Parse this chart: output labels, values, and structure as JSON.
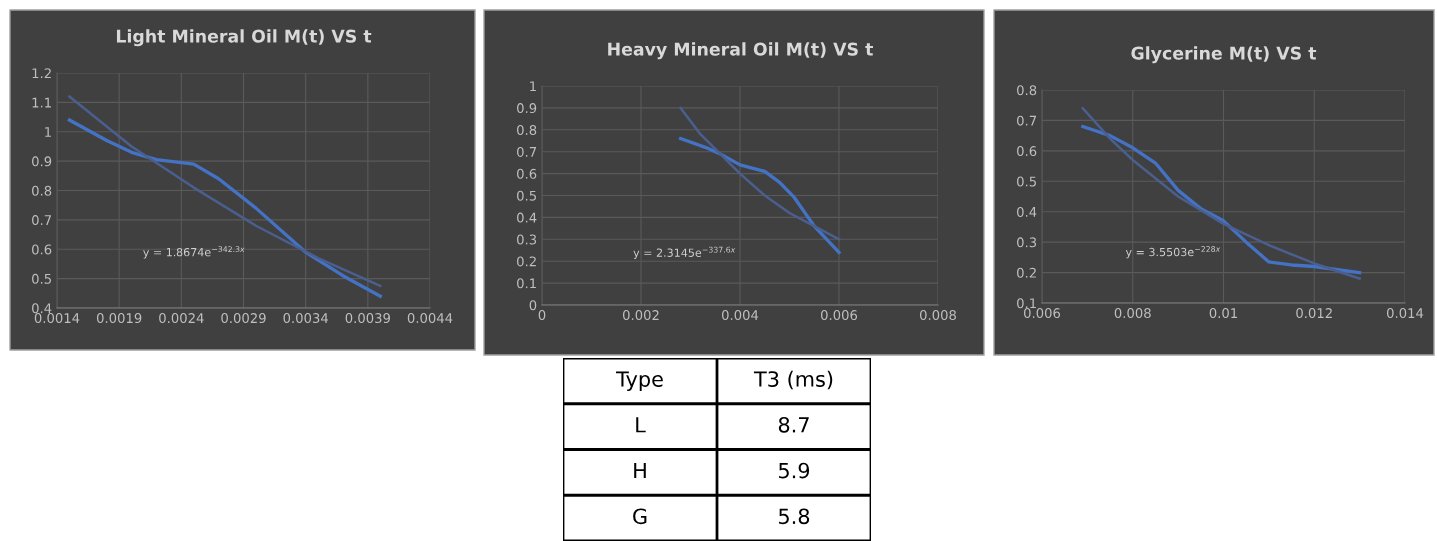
{
  "chart_data": [
    {
      "type": "line",
      "title": "Light Mineral Oil M(t) VS t",
      "xlim": [
        0.0014,
        0.0044
      ],
      "xticks": [
        0.0014,
        0.0019,
        0.0024,
        0.0029,
        0.0034,
        0.0039,
        0.0044
      ],
      "ylim": [
        0.4,
        1.2
      ],
      "yticks": [
        0.4,
        0.5,
        0.6,
        0.7,
        0.8,
        0.9,
        1,
        1.1,
        1.2
      ],
      "grid": true,
      "marker": "none",
      "annotations": [
        "y = 1.8674e$^{−342.3x}$"
      ],
      "series": [
        {
          "color": "#4472c4",
          "x": [
            0.0015,
            0.0018,
            0.002,
            0.0022,
            0.0025,
            0.0027,
            0.003,
            0.0034,
            0.0037,
            0.004
          ],
          "values": [
            1.04,
            0.97,
            0.93,
            0.905,
            0.89,
            0.84,
            0.74,
            0.59,
            0.51,
            0.44
          ]
        },
        {
          "color": "#4a5f8f",
          "x": [
            0.0015,
            0.002,
            0.0025,
            0.003,
            0.0035,
            0.004
          ],
          "values": [
            1.12,
            0.95,
            0.81,
            0.68,
            0.57,
            0.475
          ]
        }
      ]
    },
    {
      "type": "line",
      "title": "Heavy Mineral Oil M(t) VS t",
      "xlim": [
        0,
        0.008
      ],
      "xticks": [
        0,
        0.002,
        0.004,
        0.006,
        0.008
      ],
      "ylim": [
        0,
        1
      ],
      "yticks": [
        0,
        0.1,
        0.2,
        0.3,
        0.4,
        0.5,
        0.6,
        0.7,
        0.8,
        0.9,
        1
      ],
      "grid": true,
      "marker": "none",
      "annotations": [
        "y = 2.3145e$^{−337.6x}$"
      ],
      "series": [
        {
          "color": "#4472c4",
          "x": [
            0.0028,
            0.0033,
            0.0036,
            0.004,
            0.0045,
            0.0048,
            0.0051,
            0.0055,
            0.006
          ],
          "values": [
            0.76,
            0.72,
            0.69,
            0.64,
            0.61,
            0.56,
            0.49,
            0.36,
            0.24
          ]
        },
        {
          "color": "#4a5f8f",
          "x": [
            0.0028,
            0.0032,
            0.0036,
            0.004,
            0.0045,
            0.005,
            0.0055,
            0.006
          ],
          "values": [
            0.9,
            0.78,
            0.69,
            0.6,
            0.5,
            0.42,
            0.36,
            0.3
          ]
        }
      ]
    },
    {
      "type": "line",
      "title": "Glycerine M(t) VS t",
      "xlim": [
        0.006,
        0.014
      ],
      "xticks": [
        0.006,
        0.008,
        0.01,
        0.012,
        0.014
      ],
      "ylim": [
        0.1,
        0.8
      ],
      "yticks": [
        0.1,
        0.2,
        0.3,
        0.4,
        0.5,
        0.6,
        0.7,
        0.8
      ],
      "grid": true,
      "marker": "none",
      "annotations": [
        "y = 3.5503e$^{−228x}$"
      ],
      "series": [
        {
          "color": "#4472c4",
          "x": [
            0.0069,
            0.0075,
            0.008,
            0.0085,
            0.009,
            0.0095,
            0.01,
            0.0105,
            0.011,
            0.0115,
            0.012,
            0.013
          ],
          "values": [
            0.68,
            0.65,
            0.61,
            0.56,
            0.47,
            0.41,
            0.37,
            0.3,
            0.235,
            0.225,
            0.22,
            0.2
          ]
        },
        {
          "color": "#4a5f8f",
          "x": [
            0.0069,
            0.0075,
            0.008,
            0.009,
            0.01,
            0.011,
            0.012,
            0.013
          ],
          "values": [
            0.74,
            0.64,
            0.57,
            0.45,
            0.36,
            0.29,
            0.23,
            0.18
          ]
        }
      ]
    },
    {
      "type": "other",
      "annotations": [
        "Type",
        "T3 (ms)"
      ],
      "categories": [
        "L",
        "H",
        "G"
      ],
      "values": [
        8.7,
        5.9,
        5.8
      ],
      "data_labels": true
    }
  ]
}
